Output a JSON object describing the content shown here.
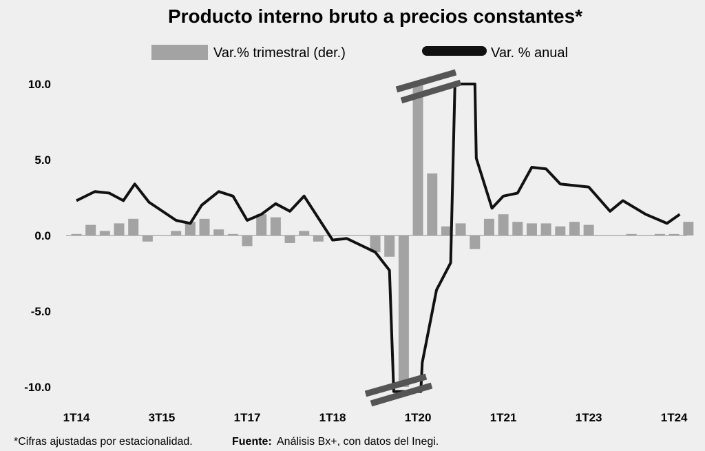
{
  "chart_data": {
    "type": "bar+line",
    "title": "Producto interno bruto a precios constantes*",
    "legend": {
      "bars_label": "Var.% trimestral (der.)",
      "line_label": "Var. % anual",
      "position": "top"
    },
    "y_axis": {
      "min": -11.0,
      "max": 10.5,
      "ticks": [
        "10.0",
        "5.0",
        "0.0",
        "-5.0",
        "-10.0"
      ],
      "tick_values": [
        10,
        5,
        0,
        -5,
        -10
      ],
      "note": "axis truncated near ±10 (break marks)"
    },
    "x_labels": [
      {
        "label": "1T14",
        "index": 0
      },
      {
        "label": "3T15",
        "index": 6
      },
      {
        "label": "1T17",
        "index": 12
      },
      {
        "label": "1T18",
        "index": 18
      },
      {
        "label": "1T20",
        "index": 24
      },
      {
        "label": "1T21",
        "index": 30
      },
      {
        "label": "1T23",
        "index": 36
      },
      {
        "label": "1T24",
        "index": 42
      }
    ],
    "quarterly_bars": [
      0.1,
      0.7,
      0.3,
      0.8,
      1.1,
      -0.4,
      0,
      0.3,
      0.9,
      1.1,
      0.4,
      0.1,
      -0.7,
      1.4,
      1.2,
      -0.5,
      0.3,
      -0.4,
      0,
      0,
      0,
      -1.1,
      -1.4,
      -10.0,
      10.0,
      4.1,
      0.6,
      0.8,
      -0.9,
      1.1,
      1.4,
      0.9,
      0.8,
      0.8,
      0.6,
      0.9,
      0.7,
      0,
      0,
      0.1,
      0,
      0.1,
      0.1,
      0.9
    ],
    "annual_line": [
      {
        "i": 0,
        "v": 2.3
      },
      {
        "i": 1.3,
        "v": 2.9
      },
      {
        "i": 2.3,
        "v": 2.8
      },
      {
        "i": 3.3,
        "v": 2.3
      },
      {
        "i": 4.1,
        "v": 3.4
      },
      {
        "i": 5.1,
        "v": 2.2
      },
      {
        "i": 7,
        "v": 1.0
      },
      {
        "i": 8,
        "v": 0.8
      },
      {
        "i": 8.8,
        "v": 2.0
      },
      {
        "i": 10,
        "v": 2.9
      },
      {
        "i": 11,
        "v": 2.6
      },
      {
        "i": 12,
        "v": 1.0
      },
      {
        "i": 13,
        "v": 1.4
      },
      {
        "i": 14,
        "v": 2.1
      },
      {
        "i": 15,
        "v": 1.6
      },
      {
        "i": 16,
        "v": 2.6
      },
      {
        "i": 18,
        "v": -0.3
      },
      {
        "i": 19,
        "v": -0.2
      },
      {
        "i": 21,
        "v": -1.1
      },
      {
        "i": 22,
        "v": -2.3
      },
      {
        "i": 22.3,
        "v": -10.3
      },
      {
        "i": 24.2,
        "v": -10.3
      },
      {
        "i": 24.3,
        "v": -8.4
      },
      {
        "i": 25.3,
        "v": -3.6
      },
      {
        "i": 26.3,
        "v": -1.8
      },
      {
        "i": 26.6,
        "v": 10.0
      },
      {
        "i": 28.0,
        "v": 10.0
      },
      {
        "i": 28.1,
        "v": 5.1
      },
      {
        "i": 29.2,
        "v": 1.8
      },
      {
        "i": 30,
        "v": 2.6
      },
      {
        "i": 31,
        "v": 2.8
      },
      {
        "i": 32,
        "v": 4.5
      },
      {
        "i": 33,
        "v": 4.4
      },
      {
        "i": 34,
        "v": 3.4
      },
      {
        "i": 36,
        "v": 3.2
      },
      {
        "i": 37.5,
        "v": 1.6
      },
      {
        "i": 38.4,
        "v": 2.3
      },
      {
        "i": 40,
        "v": 1.4
      },
      {
        "i": 41.5,
        "v": 0.8
      },
      {
        "i": 42.4,
        "v": 1.4
      }
    ],
    "colors": {
      "bars": "#a3a3a3",
      "line": "#111111",
      "break_marks": "#555555",
      "zero_line": "#a0a0a0",
      "background": "#efefef"
    }
  },
  "footnote": {
    "note": "*Cifras ajustadas por estacionalidad.",
    "source_label": "Fuente:",
    "source_text": "Análisis Bx+, con datos del Inegi."
  }
}
